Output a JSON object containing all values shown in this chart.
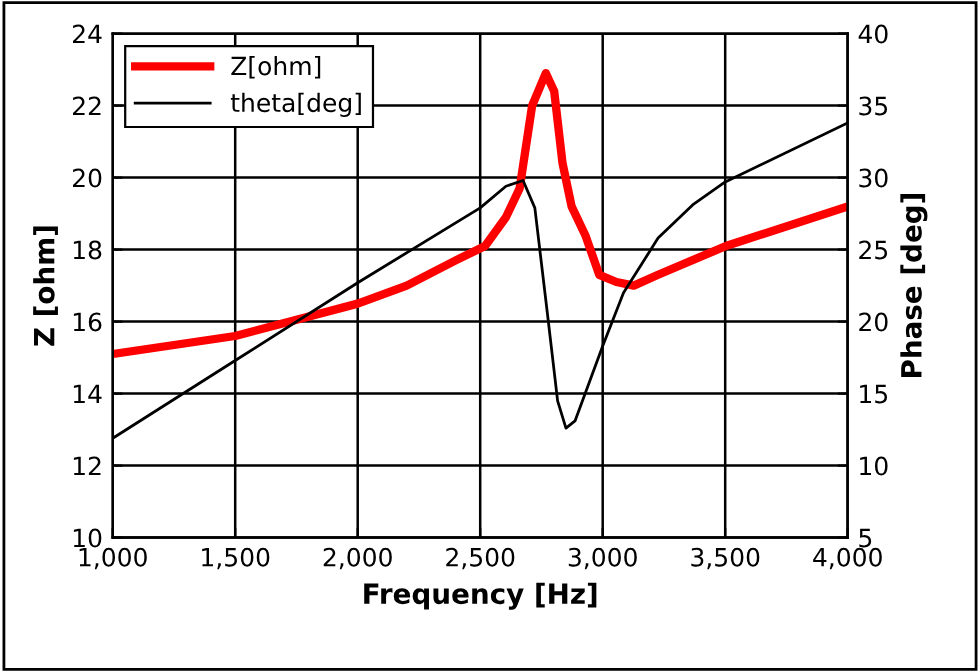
{
  "chart_data": {
    "type": "line",
    "xlabel": "Frequency [Hz]",
    "ylabel": "Z [ohm]",
    "y2label": "Phase [deg]",
    "xlim": [
      1000,
      4000
    ],
    "xticks": [
      {
        "value": 1000,
        "label": "1,000"
      },
      {
        "value": 1500,
        "label": "1,500"
      },
      {
        "value": 2000,
        "label": "2,000"
      },
      {
        "value": 2500,
        "label": "2,500"
      },
      {
        "value": 3000,
        "label": "3,000"
      },
      {
        "value": 3500,
        "label": "3,500"
      },
      {
        "value": 4000,
        "label": "4,000"
      }
    ],
    "ylim": [
      10,
      24
    ],
    "yticks": [
      10,
      12,
      14,
      16,
      18,
      20,
      22,
      24
    ],
    "y2lim": [
      5,
      40
    ],
    "y2ticks": [
      5,
      10,
      15,
      20,
      25,
      30,
      35,
      40
    ],
    "grid": true,
    "legend": "top left",
    "marker": "none",
    "series": [
      {
        "name": "Z[ohm]",
        "color": "#ff0000",
        "x": [
          1000,
          1500,
          2000,
          2200,
          2400,
          2520,
          2605,
          2661,
          2712,
          2768,
          2802,
          2836,
          2873,
          2929,
          2986,
          3056,
          3127,
          3226,
          3503,
          4000
        ],
        "values": [
          15.1,
          15.6,
          16.5,
          17.0,
          17.7,
          18.1,
          18.9,
          19.7,
          22.0,
          22.9,
          22.4,
          20.4,
          19.2,
          18.4,
          17.3,
          17.1,
          17.0,
          17.3,
          18.1,
          19.2
        ]
      },
      {
        "name": "theta[deg]",
        "color": "#000000",
        "axis": "y2",
        "x": [
          1000,
          1500,
          2000,
          2500,
          2605,
          2675,
          2723,
          2774,
          2816,
          2850,
          2887,
          3000,
          3085,
          3226,
          3367,
          3500,
          4000
        ],
        "values": [
          11.9,
          17.3,
          22.7,
          27.9,
          29.4,
          29.8,
          27.9,
          20.6,
          14.5,
          12.6,
          13.1,
          18.3,
          22.0,
          25.8,
          28.1,
          29.7,
          33.8
        ]
      }
    ]
  }
}
